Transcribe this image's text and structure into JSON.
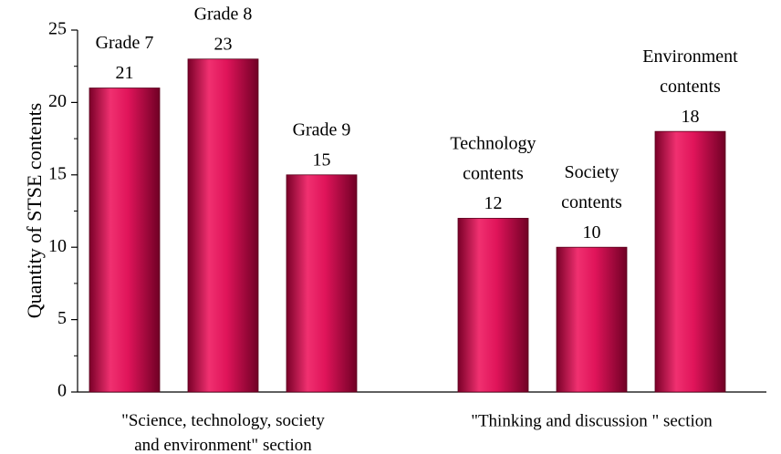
{
  "chart_data": {
    "type": "bar",
    "y_label": "Quantity of STSE contents",
    "groups": [
      {
        "label": "\"Science, technology, society\nand environment\" section",
        "categories": [
          "Grade 7",
          "Grade 8",
          "Grade 9"
        ],
        "values": [
          21,
          23,
          15
        ]
      },
      {
        "label": "\"Thinking and discussion \" section",
        "categories": [
          "Technology\ncontents",
          "Society\ncontents",
          "Environment\ncontents"
        ],
        "values": [
          12,
          10,
          18
        ]
      }
    ],
    "color": "#e8175f",
    "ylim": [
      0,
      25
    ],
    "yticks": [
      0,
      5,
      10,
      15,
      20,
      25
    ],
    "yminorticks": [
      2.5,
      7.5,
      12.5,
      17.5,
      22.5
    ]
  }
}
